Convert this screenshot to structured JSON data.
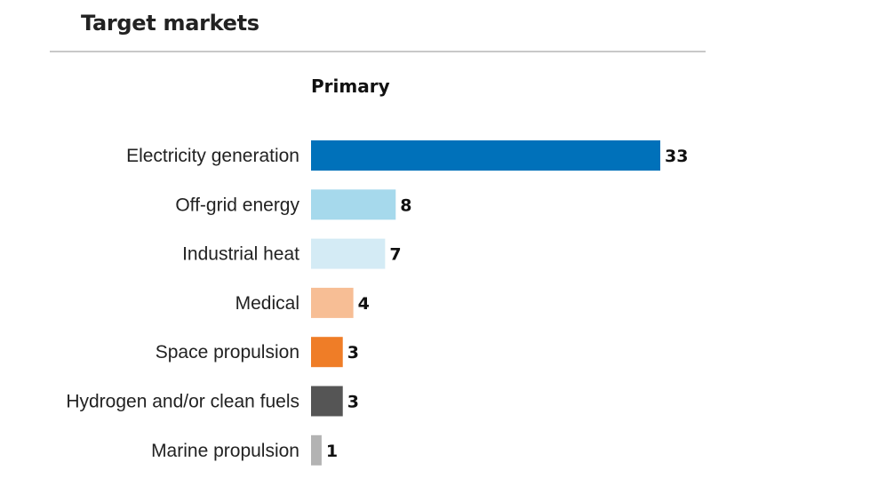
{
  "header": {
    "section_title": "Target markets"
  },
  "chart_data": {
    "type": "bar",
    "orientation": "horizontal",
    "title": "Primary",
    "xlabel": "",
    "ylabel": "",
    "grid": false,
    "categories": [
      "Electricity generation",
      "Off-grid energy",
      "Industrial heat",
      "Medical",
      "Space propulsion",
      "Hydrogen and/or clean fuels",
      "Marine propulsion"
    ],
    "values": [
      33,
      8,
      7,
      4,
      3,
      3,
      1
    ],
    "colors": [
      "#0071ba",
      "#a6d9ec",
      "#d4ebf5",
      "#f7be95",
      "#ef7d27",
      "#555555",
      "#b3b3b3"
    ]
  }
}
